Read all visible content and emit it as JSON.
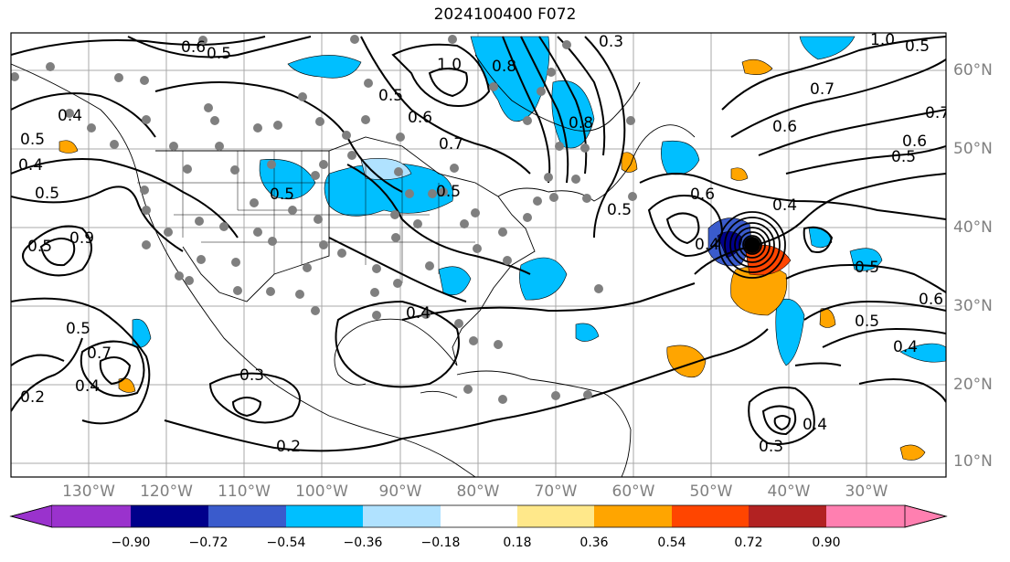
{
  "title": "2024100400 F072",
  "lat_labels": [
    "60°N",
    "50°N",
    "40°N",
    "30°N",
    "20°N",
    "10°N"
  ],
  "lon_labels": [
    "130°W",
    "120°W",
    "110°W",
    "100°W",
    "90°W",
    "80°W",
    "70°W",
    "60°W",
    "50°W",
    "40°W",
    "30°W"
  ],
  "colorbar": {
    "ticks": [
      "−0.90",
      "−0.72",
      "−0.54",
      "−0.36",
      "−0.18",
      "0.18",
      "0.36",
      "0.54",
      "0.72",
      "0.90"
    ],
    "colors": [
      "#9a32cd",
      "#00008b",
      "#3a5bcc",
      "#00bfff",
      "#b0e2ff",
      "#ffffff",
      "#ffe88a",
      "#ffa500",
      "#ff4500",
      "#b22222",
      "#ff7fb0"
    ]
  },
  "contour_labels": [
    "0.6",
    "0.5",
    "0.3",
    "1.0",
    "0.8",
    "0.8",
    "0.5",
    "0.6",
    "0.7",
    "1.0",
    "0.5",
    "0.7",
    "0.4",
    "0.5",
    "0.4",
    "0.5",
    "0.5",
    "0.9",
    "0.5",
    "0.5",
    "0.4",
    "0.5",
    "0.6",
    "0.6",
    "0.7",
    "0.4",
    "0.5",
    "0.5",
    "0.4",
    "0.6",
    "0.5",
    "0.6",
    "0.4",
    "0.5",
    "0.7",
    "0.3",
    "0.2",
    "0.4",
    "0.3",
    "0.4",
    "0.2"
  ],
  "contour_label_sets": {
    "main": [
      "0.6",
      "0.5",
      "0.3",
      "1.0",
      "0.8",
      "0.5",
      "0.6",
      "0.7",
      "1.0",
      "0.5",
      "0.7",
      "0.4",
      "0.5"
    ]
  }
}
